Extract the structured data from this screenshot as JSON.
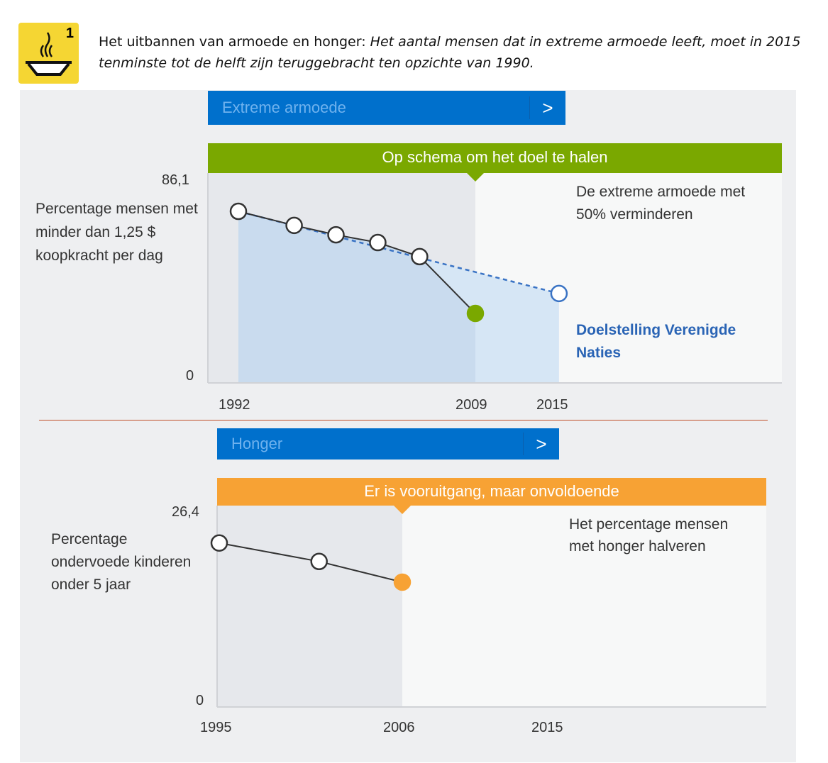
{
  "header": {
    "goal_number": "1",
    "icon": "soup-bowl-icon",
    "title_plain": "Het uitbannen van armoede en honger: ",
    "title_italic": "Het aantal mensen dat in extreme armoede leeft, moet in 2015 tenminste tot de helft zijn teruggebracht ten opzichte van 1990."
  },
  "colors": {
    "icon_bg": "#f5d633",
    "banner": "#0070cc",
    "on_track": "#7aa800",
    "progress": "#f7a234",
    "area": "#c9dbee",
    "target_area": "#d6e6f5"
  },
  "chart_data": [
    {
      "type": "line",
      "banner": "Extreme armoede",
      "chevron": ">",
      "status": "Op schema om het doel te halen",
      "ylabel": "Percentage mensen met minder dan 1,25 $ koopkracht per dag",
      "y_ticks": [
        "86,1",
        "0"
      ],
      "ylim": [
        0,
        86.1
      ],
      "x_ticks": [
        "1992",
        "2009",
        "2015"
      ],
      "xlim": [
        1985.6,
        2026.8
      ],
      "series": [
        {
          "x": [
            1992,
            1996,
            1999,
            2002,
            2005,
            2009
          ],
          "values": [
            73.1,
            67.1,
            63.1,
            59.8,
            53.8,
            29.6
          ]
        }
      ],
      "target": {
        "name": "Doelstelling Verenigde Naties",
        "x": [
          1992,
          2015
        ],
        "values": [
          73.1,
          38.1
        ]
      },
      "goal_text": "De extreme armoede met 50% verminderen"
    },
    {
      "type": "line",
      "banner": "Honger",
      "chevron": ">",
      "status": "Er is vooruitgang, maar onvoldoende",
      "ylabel": "Percentage ondervoede kinderen onder 5 jaar",
      "y_ticks": [
        "26,4",
        "0"
      ],
      "ylim": [
        0,
        26.4
      ],
      "x_ticks": [
        "1995",
        "2006",
        "2015"
      ],
      "xlim": [
        1994.9,
        2028
      ],
      "series": [
        {
          "x": [
            1995,
            2001,
            2006
          ],
          "values": [
            22.2,
            19.7,
            16.9
          ]
        }
      ],
      "goal_text": "Het percentage mensen met honger halveren"
    }
  ]
}
